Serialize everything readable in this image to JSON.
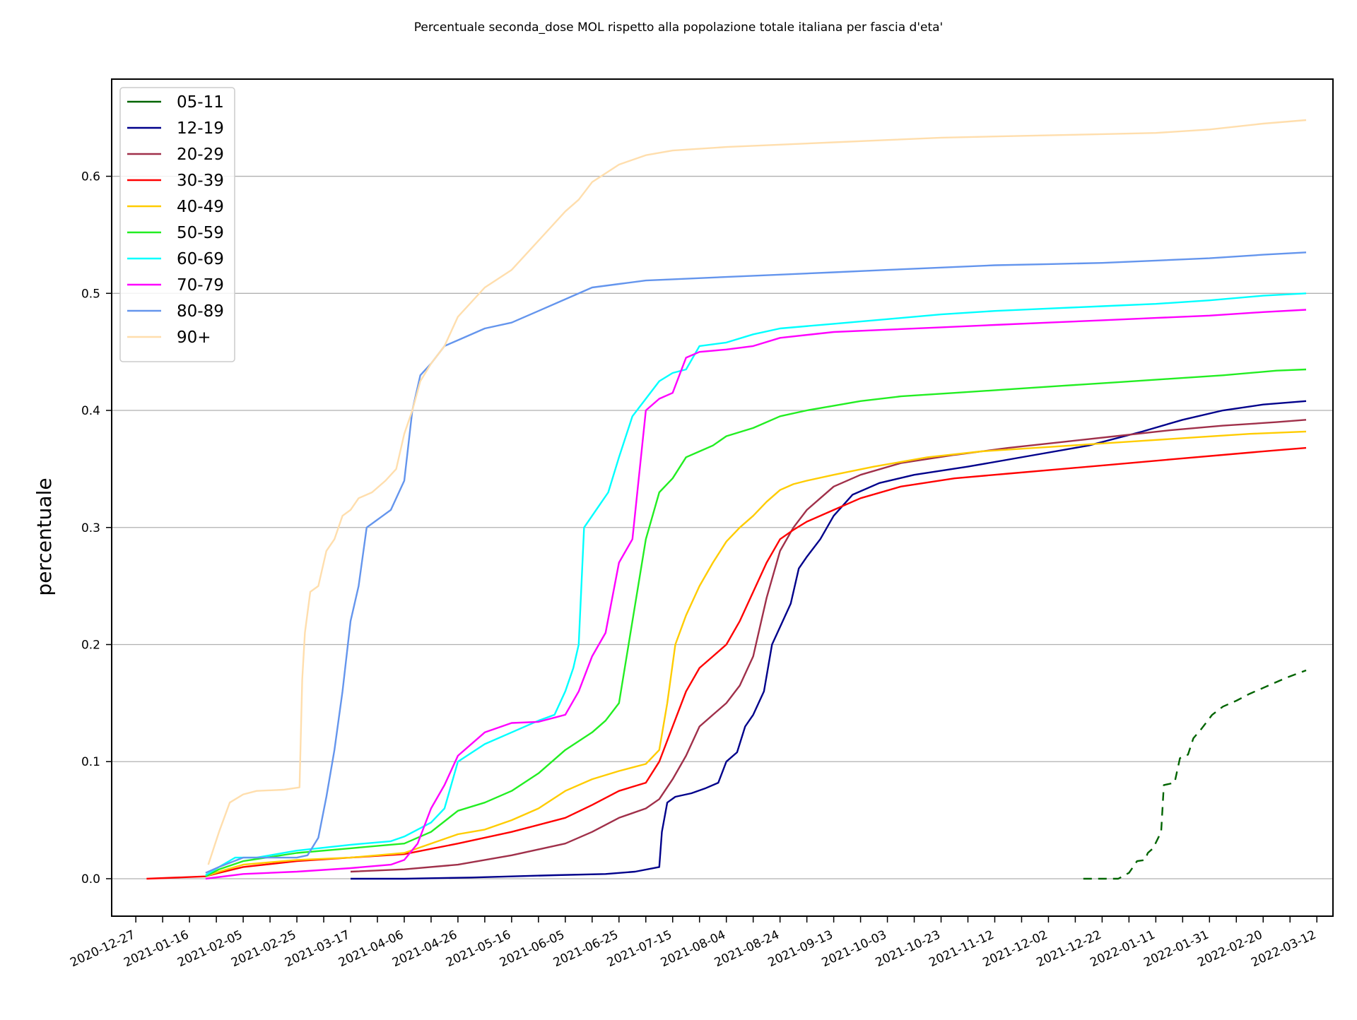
{
  "chart_data": {
    "type": "line",
    "title": "Percentuale seconda_dose MOL rispetto alla popolazione totale italiana per fascia d'eta'",
    "xlabel": "",
    "ylabel": "percentuale",
    "ylim": [
      -0.032,
      0.683
    ],
    "xlim": [
      "2020-12-18",
      "2022-03-18"
    ],
    "grid": "horizontal",
    "legend_position": "upper-left",
    "x_tick_labels": [
      "2020-12-27",
      "2021-01-16",
      "2021-02-05",
      "2021-02-25",
      "2021-03-17",
      "2021-04-06",
      "2021-04-26",
      "2021-05-16",
      "2021-06-05",
      "2021-06-25",
      "2021-07-15",
      "2021-08-04",
      "2021-08-24",
      "2021-09-13",
      "2021-10-03",
      "2021-10-23",
      "2021-11-12",
      "2021-12-02",
      "2021-12-22",
      "2022-01-11",
      "2022-01-31",
      "2022-02-20",
      "2022-03-12"
    ],
    "y_ticks": [
      0.0,
      0.1,
      0.2,
      0.3,
      0.4,
      0.5,
      0.6
    ],
    "y_tick_labels": [
      "0.0",
      "0.1",
      "0.2",
      "0.3",
      "0.4",
      "0.5",
      "0.6"
    ],
    "series": [
      {
        "name": "05-11",
        "color": "#006400",
        "dashed": true,
        "x": [
          "2021-12-15",
          "2021-12-22",
          "2021-12-28",
          "2022-01-01",
          "2022-01-04",
          "2022-01-07",
          "2022-01-08",
          "2022-01-10",
          "2022-01-13",
          "2022-01-14",
          "2022-01-18",
          "2022-01-20",
          "2022-01-23",
          "2022-01-25",
          "2022-01-28",
          "2022-02-01",
          "2022-02-05",
          "2022-02-10",
          "2022-02-15",
          "2022-02-20",
          "2022-02-25",
          "2022-03-01",
          "2022-03-08"
        ],
        "y": [
          0.0,
          0.0,
          0.0,
          0.005,
          0.015,
          0.016,
          0.022,
          0.026,
          0.04,
          0.08,
          0.082,
          0.103,
          0.106,
          0.12,
          0.128,
          0.14,
          0.147,
          0.152,
          0.158,
          0.163,
          0.168,
          0.172,
          0.178
        ]
      },
      {
        "name": "12-19",
        "color": "#00008b",
        "dashed": false,
        "x": [
          "2021-03-17",
          "2021-04-06",
          "2021-05-01",
          "2021-06-01",
          "2021-06-20",
          "2021-07-01",
          "2021-07-10",
          "2021-07-11",
          "2021-07-13",
          "2021-07-16",
          "2021-07-22",
          "2021-07-27",
          "2021-08-01",
          "2021-08-04",
          "2021-08-08",
          "2021-08-11",
          "2021-08-14",
          "2021-08-18",
          "2021-08-21",
          "2021-08-24",
          "2021-08-28",
          "2021-08-31",
          "2021-09-03",
          "2021-09-08",
          "2021-09-13",
          "2021-09-20",
          "2021-09-30",
          "2021-10-13",
          "2021-11-02",
          "2021-11-27",
          "2021-12-17",
          "2022-01-06",
          "2022-01-21",
          "2022-02-05",
          "2022-02-20",
          "2022-03-08"
        ],
        "y": [
          0.0,
          0.0,
          0.001,
          0.003,
          0.004,
          0.006,
          0.01,
          0.04,
          0.065,
          0.07,
          0.073,
          0.077,
          0.082,
          0.1,
          0.108,
          0.13,
          0.14,
          0.16,
          0.2,
          0.215,
          0.235,
          0.265,
          0.275,
          0.29,
          0.31,
          0.328,
          0.338,
          0.345,
          0.352,
          0.362,
          0.37,
          0.382,
          0.392,
          0.4,
          0.405,
          0.408
        ]
      },
      {
        "name": "20-29",
        "color": "#a0304a",
        "dashed": false,
        "x": [
          "2021-03-17",
          "2021-04-06",
          "2021-04-26",
          "2021-05-16",
          "2021-06-05",
          "2021-06-15",
          "2021-06-25",
          "2021-07-05",
          "2021-07-10",
          "2021-07-15",
          "2021-07-20",
          "2021-07-25",
          "2021-07-30",
          "2021-08-04",
          "2021-08-09",
          "2021-08-14",
          "2021-08-19",
          "2021-08-24",
          "2021-08-29",
          "2021-09-03",
          "2021-09-08",
          "2021-09-13",
          "2021-09-23",
          "2021-10-08",
          "2021-10-28",
          "2021-11-17",
          "2021-12-07",
          "2021-12-27",
          "2022-01-16",
          "2022-02-05",
          "2022-02-25",
          "2022-03-08"
        ],
        "y": [
          0.006,
          0.008,
          0.012,
          0.02,
          0.03,
          0.04,
          0.052,
          0.06,
          0.068,
          0.085,
          0.105,
          0.13,
          0.14,
          0.15,
          0.165,
          0.19,
          0.24,
          0.28,
          0.3,
          0.315,
          0.325,
          0.335,
          0.345,
          0.355,
          0.362,
          0.368,
          0.373,
          0.378,
          0.383,
          0.387,
          0.39,
          0.392
        ]
      },
      {
        "name": "30-39",
        "color": "#ff0000",
        "dashed": false,
        "x": [
          "2020-12-31",
          "2021-01-22",
          "2021-01-27",
          "2021-02-05",
          "2021-02-25",
          "2021-03-17",
          "2021-04-06",
          "2021-04-26",
          "2021-05-16",
          "2021-06-05",
          "2021-06-15",
          "2021-06-25",
          "2021-07-05",
          "2021-07-10",
          "2021-07-15",
          "2021-07-20",
          "2021-07-25",
          "2021-07-30",
          "2021-08-04",
          "2021-08-09",
          "2021-08-14",
          "2021-08-19",
          "2021-08-24",
          "2021-08-29",
          "2021-09-03",
          "2021-09-13",
          "2021-09-23",
          "2021-10-08",
          "2021-10-28",
          "2021-11-17",
          "2021-12-07",
          "2021-12-27",
          "2022-01-16",
          "2022-02-05",
          "2022-02-25",
          "2022-03-08"
        ],
        "y": [
          0.0,
          0.002,
          0.005,
          0.01,
          0.015,
          0.018,
          0.021,
          0.03,
          0.04,
          0.052,
          0.063,
          0.075,
          0.082,
          0.1,
          0.13,
          0.16,
          0.18,
          0.19,
          0.2,
          0.22,
          0.245,
          0.27,
          0.29,
          0.298,
          0.305,
          0.315,
          0.325,
          0.335,
          0.342,
          0.346,
          0.35,
          0.354,
          0.358,
          0.362,
          0.366,
          0.368
        ]
      },
      {
        "name": "40-49",
        "color": "#ffcc00",
        "dashed": false,
        "x": [
          "2021-01-22",
          "2021-01-27",
          "2021-02-05",
          "2021-02-25",
          "2021-03-17",
          "2021-04-06",
          "2021-04-16",
          "2021-04-26",
          "2021-05-06",
          "2021-05-16",
          "2021-05-26",
          "2021-06-05",
          "2021-06-15",
          "2021-06-25",
          "2021-07-05",
          "2021-07-10",
          "2021-07-13",
          "2021-07-16",
          "2021-07-20",
          "2021-07-25",
          "2021-07-30",
          "2021-08-04",
          "2021-08-09",
          "2021-08-14",
          "2021-08-19",
          "2021-08-24",
          "2021-08-29",
          "2021-09-03",
          "2021-09-13",
          "2021-09-28",
          "2021-10-18",
          "2021-11-07",
          "2021-11-27",
          "2021-12-17",
          "2022-01-06",
          "2022-01-26",
          "2022-02-15",
          "2022-03-08"
        ],
        "y": [
          0.002,
          0.006,
          0.012,
          0.016,
          0.018,
          0.022,
          0.03,
          0.038,
          0.042,
          0.05,
          0.06,
          0.075,
          0.085,
          0.092,
          0.098,
          0.11,
          0.15,
          0.2,
          0.225,
          0.25,
          0.27,
          0.288,
          0.3,
          0.31,
          0.322,
          0.332,
          0.337,
          0.34,
          0.345,
          0.352,
          0.36,
          0.365,
          0.368,
          0.371,
          0.374,
          0.377,
          0.38,
          0.382
        ]
      },
      {
        "name": "50-59",
        "color": "#22ee22",
        "dashed": false,
        "x": [
          "2021-01-22",
          "2021-01-27",
          "2021-02-05",
          "2021-02-25",
          "2021-03-17",
          "2021-04-06",
          "2021-04-16",
          "2021-04-26",
          "2021-05-06",
          "2021-05-16",
          "2021-05-26",
          "2021-06-05",
          "2021-06-15",
          "2021-06-20",
          "2021-06-25",
          "2021-06-30",
          "2021-07-05",
          "2021-07-10",
          "2021-07-15",
          "2021-07-20",
          "2021-07-25",
          "2021-07-30",
          "2021-08-04",
          "2021-08-14",
          "2021-08-24",
          "2021-09-03",
          "2021-09-13",
          "2021-09-23",
          "2021-10-08",
          "2021-10-28",
          "2021-11-17",
          "2021-12-07",
          "2021-12-27",
          "2022-01-16",
          "2022-02-05",
          "2022-02-25",
          "2022-03-08"
        ],
        "y": [
          0.002,
          0.008,
          0.015,
          0.022,
          0.026,
          0.03,
          0.04,
          0.058,
          0.065,
          0.075,
          0.09,
          0.11,
          0.125,
          0.135,
          0.15,
          0.22,
          0.29,
          0.33,
          0.342,
          0.36,
          0.365,
          0.37,
          0.378,
          0.385,
          0.395,
          0.4,
          0.404,
          0.408,
          0.412,
          0.415,
          0.418,
          0.421,
          0.424,
          0.427,
          0.43,
          0.434,
          0.435
        ]
      },
      {
        "name": "60-69",
        "color": "#00ffff",
        "dashed": false,
        "x": [
          "2021-01-22",
          "2021-01-27",
          "2021-02-02",
          "2021-02-10",
          "2021-02-25",
          "2021-03-17",
          "2021-04-01",
          "2021-04-06",
          "2021-04-11",
          "2021-04-16",
          "2021-04-21",
          "2021-04-26",
          "2021-05-06",
          "2021-05-16",
          "2021-05-26",
          "2021-06-01",
          "2021-06-05",
          "2021-06-08",
          "2021-06-10",
          "2021-06-12",
          "2021-06-15",
          "2021-06-18",
          "2021-06-21",
          "2021-06-25",
          "2021-06-30",
          "2021-07-05",
          "2021-07-10",
          "2021-07-15",
          "2021-07-20",
          "2021-07-25",
          "2021-08-04",
          "2021-08-14",
          "2021-08-24",
          "2021-09-13",
          "2021-10-03",
          "2021-10-23",
          "2021-11-12",
          "2021-12-02",
          "2021-12-22",
          "2022-01-11",
          "2022-01-31",
          "2022-02-20",
          "2022-03-08"
        ],
        "y": [
          0.003,
          0.01,
          0.018,
          0.018,
          0.024,
          0.029,
          0.032,
          0.036,
          0.042,
          0.048,
          0.06,
          0.1,
          0.115,
          0.125,
          0.135,
          0.14,
          0.16,
          0.18,
          0.2,
          0.3,
          0.31,
          0.32,
          0.33,
          0.36,
          0.395,
          0.41,
          0.425,
          0.432,
          0.435,
          0.455,
          0.458,
          0.465,
          0.47,
          0.474,
          0.478,
          0.482,
          0.485,
          0.487,
          0.489,
          0.491,
          0.494,
          0.498,
          0.5
        ]
      },
      {
        "name": "70-79",
        "color": "#ff00ff",
        "dashed": false,
        "x": [
          "2021-01-22",
          "2021-02-05",
          "2021-02-25",
          "2021-03-17",
          "2021-04-01",
          "2021-04-06",
          "2021-04-11",
          "2021-04-16",
          "2021-04-21",
          "2021-04-26",
          "2021-05-06",
          "2021-05-16",
          "2021-05-26",
          "2021-06-05",
          "2021-06-10",
          "2021-06-15",
          "2021-06-20",
          "2021-06-25",
          "2021-06-30",
          "2021-07-05",
          "2021-07-10",
          "2021-07-15",
          "2021-07-20",
          "2021-07-25",
          "2021-08-04",
          "2021-08-14",
          "2021-08-24",
          "2021-09-13",
          "2021-10-03",
          "2021-10-23",
          "2021-11-12",
          "2021-12-02",
          "2021-12-22",
          "2022-01-11",
          "2022-01-31",
          "2022-02-20",
          "2022-03-08"
        ],
        "y": [
          0.0,
          0.004,
          0.006,
          0.009,
          0.012,
          0.016,
          0.03,
          0.06,
          0.08,
          0.105,
          0.125,
          0.133,
          0.134,
          0.14,
          0.16,
          0.19,
          0.21,
          0.27,
          0.29,
          0.4,
          0.41,
          0.415,
          0.445,
          0.45,
          0.452,
          0.455,
          0.462,
          0.467,
          0.469,
          0.471,
          0.473,
          0.475,
          0.477,
          0.479,
          0.481,
          0.484,
          0.486
        ]
      },
      {
        "name": "80-89",
        "color": "#6495ed",
        "dashed": false,
        "x": [
          "2021-01-22",
          "2021-01-27",
          "2021-02-05",
          "2021-02-25",
          "2021-03-01",
          "2021-03-05",
          "2021-03-08",
          "2021-03-11",
          "2021-03-14",
          "2021-03-17",
          "2021-03-20",
          "2021-03-23",
          "2021-03-26",
          "2021-03-29",
          "2021-04-01",
          "2021-04-06",
          "2021-04-09",
          "2021-04-12",
          "2021-04-16",
          "2021-04-21",
          "2021-04-26",
          "2021-05-06",
          "2021-05-16",
          "2021-05-26",
          "2021-06-05",
          "2021-06-15",
          "2021-06-25",
          "2021-07-05",
          "2021-07-15",
          "2021-08-04",
          "2021-08-24",
          "2021-09-13",
          "2021-10-03",
          "2021-10-23",
          "2021-11-12",
          "2021-12-02",
          "2021-12-22",
          "2022-01-11",
          "2022-01-31",
          "2022-02-20",
          "2022-03-08"
        ],
        "y": [
          0.005,
          0.01,
          0.018,
          0.018,
          0.02,
          0.035,
          0.07,
          0.11,
          0.16,
          0.22,
          0.25,
          0.3,
          0.305,
          0.31,
          0.315,
          0.34,
          0.4,
          0.43,
          0.44,
          0.455,
          0.46,
          0.47,
          0.475,
          0.485,
          0.495,
          0.505,
          0.508,
          0.511,
          0.512,
          0.514,
          0.516,
          0.518,
          0.52,
          0.522,
          0.524,
          0.525,
          0.526,
          0.528,
          0.53,
          0.533,
          0.535
        ]
      },
      {
        "name": "90+",
        "color": "#ffdead",
        "dashed": false,
        "x": [
          "2021-01-23",
          "2021-01-27",
          "2021-01-31",
          "2021-02-05",
          "2021-02-10",
          "2021-02-20",
          "2021-02-26",
          "2021-02-27",
          "2021-02-28",
          "2021-03-02",
          "2021-03-05",
          "2021-03-08",
          "2021-03-11",
          "2021-03-14",
          "2021-03-17",
          "2021-03-20",
          "2021-03-25",
          "2021-03-30",
          "2021-04-03",
          "2021-04-06",
          "2021-04-09",
          "2021-04-12",
          "2021-04-16",
          "2021-04-21",
          "2021-04-26",
          "2021-05-06",
          "2021-05-16",
          "2021-05-26",
          "2021-06-05",
          "2021-06-10",
          "2021-06-15",
          "2021-06-25",
          "2021-07-05",
          "2021-07-15",
          "2021-08-04",
          "2021-08-24",
          "2021-09-13",
          "2021-10-03",
          "2021-10-23",
          "2021-11-12",
          "2021-12-02",
          "2021-12-22",
          "2022-01-11",
          "2022-01-31",
          "2022-02-20",
          "2022-03-08"
        ],
        "y": [
          0.012,
          0.04,
          0.065,
          0.072,
          0.075,
          0.076,
          0.078,
          0.17,
          0.21,
          0.245,
          0.25,
          0.28,
          0.29,
          0.31,
          0.315,
          0.325,
          0.33,
          0.34,
          0.35,
          0.38,
          0.4,
          0.425,
          0.44,
          0.455,
          0.48,
          0.505,
          0.52,
          0.545,
          0.57,
          0.58,
          0.595,
          0.61,
          0.618,
          0.622,
          0.625,
          0.627,
          0.629,
          0.631,
          0.633,
          0.634,
          0.635,
          0.636,
          0.637,
          0.64,
          0.645,
          0.648
        ]
      }
    ]
  }
}
